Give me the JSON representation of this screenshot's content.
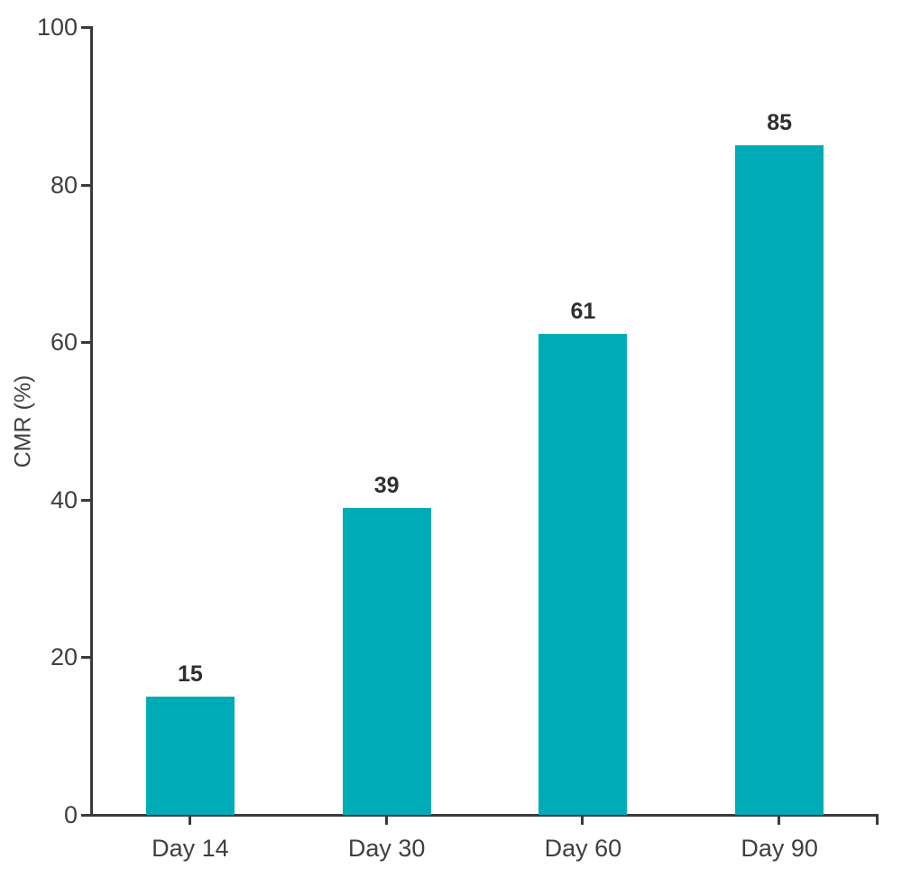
{
  "chart_data": {
    "type": "bar",
    "categories": [
      "Day 14",
      "Day 30",
      "Day 60",
      "Day 90"
    ],
    "values": [
      15,
      39,
      61,
      85
    ],
    "value_labels": [
      "15",
      "39",
      "61",
      "85"
    ],
    "title": "",
    "xlabel": "",
    "ylabel": "CMR (%)",
    "ylim": [
      0,
      100
    ],
    "yticks": [
      0,
      20,
      40,
      60,
      80,
      100
    ],
    "ytick_labels": [
      "0",
      "20",
      "40",
      "60",
      "80",
      "100"
    ],
    "grid": false,
    "legend": "none",
    "colors": {
      "bar": "#00ABB8",
      "axis": "#3A3A3A",
      "tick_label": "#3F3F3F",
      "value_label": "#2F2F2F",
      "background": "#FFFFFF"
    }
  }
}
